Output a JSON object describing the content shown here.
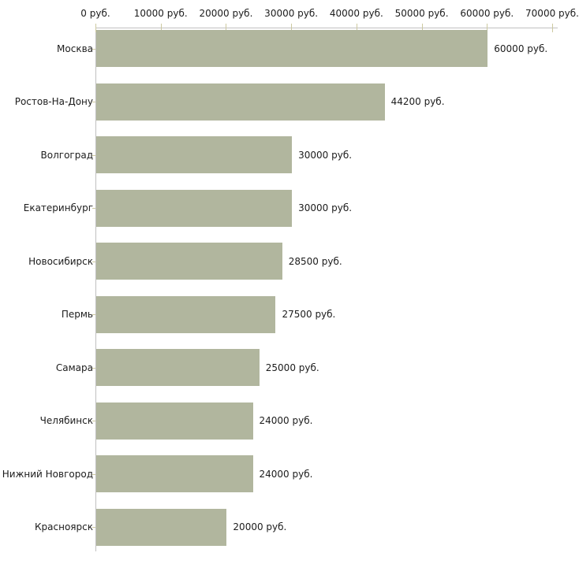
{
  "chart_data": {
    "type": "bar",
    "orientation": "horizontal",
    "title": "",
    "xlabel": "",
    "ylabel": "",
    "grid": false,
    "legend": null,
    "xlim": [
      0,
      70000
    ],
    "categories": [
      "Москва",
      "Ростов-На-Дону",
      "Волгоград",
      "Екатеринбург",
      "Новосибирск",
      "Пермь",
      "Самара",
      "Челябинск",
      "Нижний Новгород",
      "Красноярск"
    ],
    "values": [
      60000,
      44200,
      30000,
      30000,
      28500,
      27500,
      25000,
      24000,
      24000,
      20000
    ],
    "value_labels": [
      "60000 руб.",
      "44200 руб.",
      "30000 руб.",
      "30000 руб.",
      "28500 руб.",
      "27500 руб.",
      "25000 руб.",
      "24000 руб.",
      "24000 руб.",
      "20000 руб."
    ],
    "x_ticks": [
      0,
      10000,
      20000,
      30000,
      40000,
      50000,
      60000,
      70000
    ],
    "x_tick_labels": [
      "0 руб.",
      "10000 руб.",
      "20000 руб.",
      "30000 руб.",
      "40000 руб.",
      "50000 руб.",
      "60000 руб.",
      "70000 руб."
    ],
    "colors": {
      "bar": "#b1b69e",
      "tick": "#cdc9a0",
      "axis": "#c0c0c0",
      "text": "#1c1c1c",
      "background": "#ffffff"
    }
  }
}
